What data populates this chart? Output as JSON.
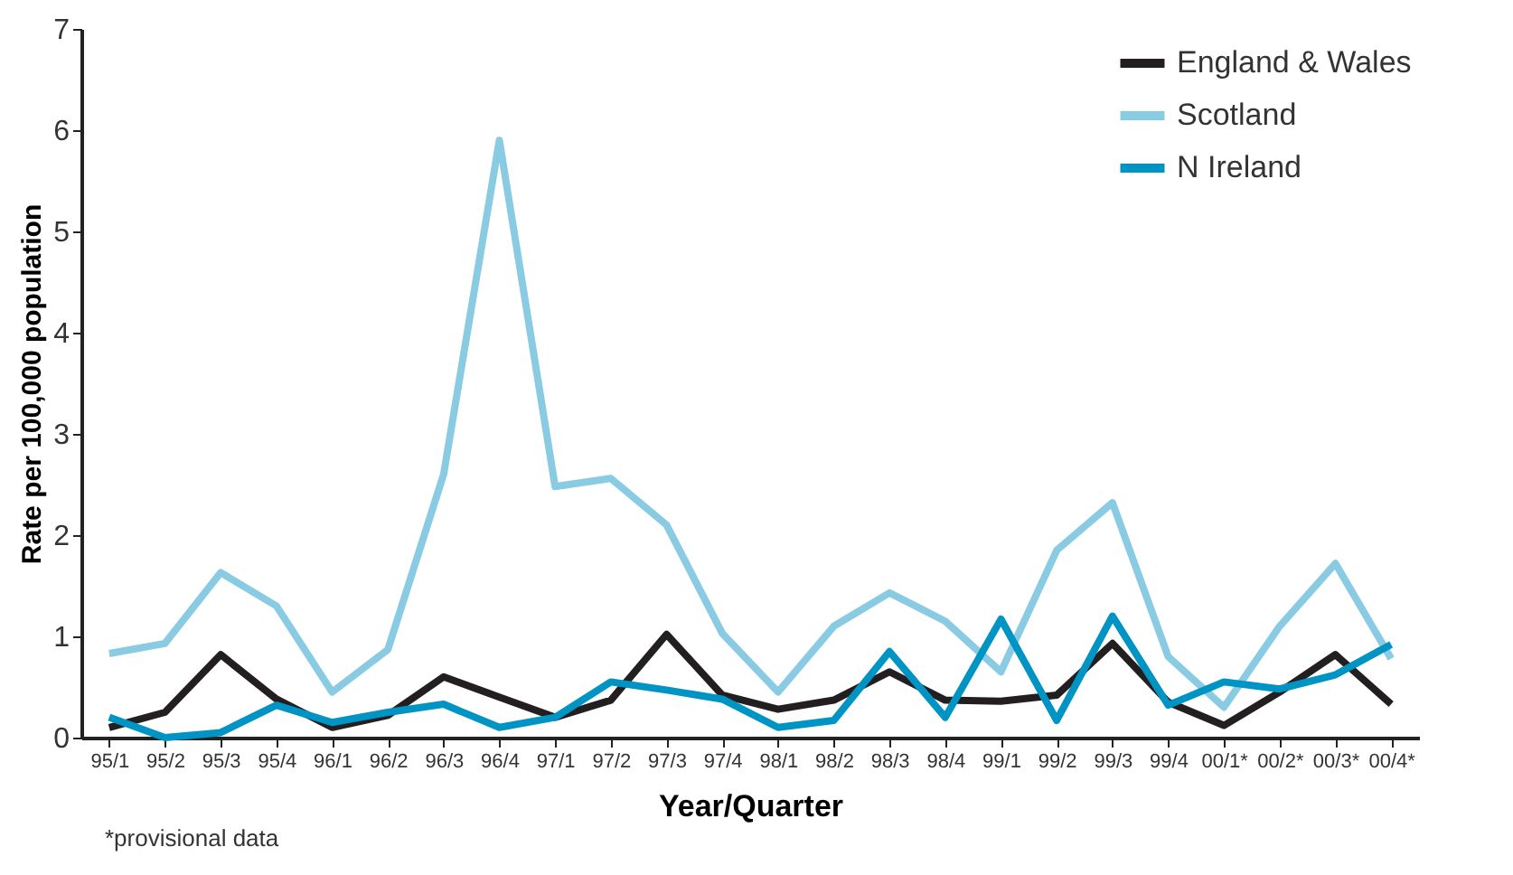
{
  "chart_data": {
    "type": "line",
    "xlabel": "Year/Quarter",
    "ylabel": "Rate per 100,000 population",
    "categories": [
      "95/1",
      "95/2",
      "95/3",
      "95/4",
      "96/1",
      "96/2",
      "96/3",
      "96/4",
      "97/1",
      "97/2",
      "97/3",
      "97/4",
      "98/1",
      "98/2",
      "98/3",
      "98/4",
      "99/1",
      "99/2",
      "99/3",
      "99/4",
      "00/1*",
      "00/2*",
      "00/3*",
      "00/4*"
    ],
    "series": [
      {
        "name": "England & Wales",
        "color": "#231f20",
        "values": [
          0.1,
          0.25,
          0.82,
          0.38,
          0.1,
          0.22,
          0.6,
          0.4,
          0.2,
          0.37,
          1.02,
          0.42,
          0.28,
          0.37,
          0.65,
          0.37,
          0.36,
          0.42,
          0.93,
          0.35,
          0.12,
          0.45,
          0.82,
          0.33
        ]
      },
      {
        "name": "Scotland",
        "color": "#89cbe3",
        "values": [
          0.83,
          0.93,
          1.63,
          1.3,
          0.45,
          0.87,
          2.6,
          5.9,
          2.48,
          2.56,
          2.1,
          1.03,
          0.45,
          1.1,
          1.43,
          1.15,
          0.65,
          1.85,
          2.32,
          0.8,
          0.3,
          1.1,
          1.72,
          0.78
        ]
      },
      {
        "name": "N Ireland",
        "color": "#0094c4",
        "values": [
          0.2,
          0,
          0.05,
          0.32,
          0.15,
          0.25,
          0.33,
          0.1,
          0.2,
          0.55,
          0.47,
          0.38,
          0.1,
          0.17,
          0.85,
          0.2,
          1.17,
          0.17,
          1.2,
          0.32,
          0.55,
          0.48,
          0.62,
          0.92
        ]
      }
    ],
    "ylim": [
      0,
      7
    ],
    "yticks": [
      0,
      1,
      2,
      3,
      4,
      5,
      6,
      7
    ],
    "grid": false,
    "legend": "top right",
    "marker": "none",
    "line_style": "solid",
    "annotations": [
      "*provisional data"
    ]
  }
}
